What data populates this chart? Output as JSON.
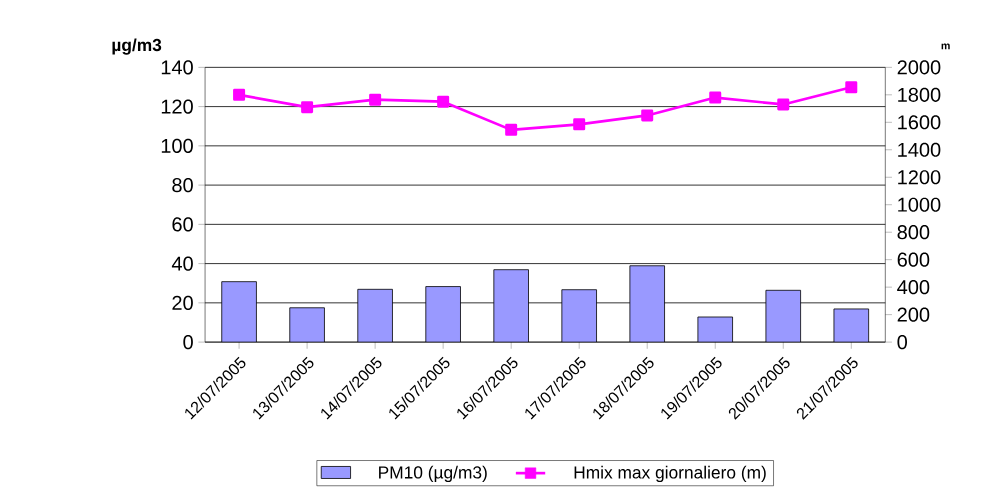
{
  "chart_data": {
    "type": "bar",
    "ylabel": "µg/m3",
    "y2label": "m",
    "categories": [
      "12/07/2005",
      "13/07/2005",
      "14/07/2005",
      "15/07/2005",
      "16/07/2005",
      "17/07/2005",
      "18/07/2005",
      "19/07/2005",
      "20/07/2005",
      "21/07/2005"
    ],
    "series": [
      {
        "name": "PM10 (µg/m3)",
        "color": "#9999ff",
        "values": [
          30.8,
          17.5,
          26.9,
          28.3,
          36.9,
          26.7,
          38.9,
          12.8,
          26.4,
          16.9
        ]
      },
      {
        "name": "Hmix max giornaliero (m)",
        "type": "line",
        "axis": "y2",
        "color": "#ff00ff",
        "values": [
          1800,
          1710,
          1765,
          1750,
          1545,
          1585,
          1650,
          1780,
          1730,
          1855
        ]
      }
    ],
    "ylim": [
      0,
      140
    ],
    "yticks": [
      0,
      20,
      40,
      60,
      80,
      100,
      120,
      140
    ],
    "y2lim": [
      0,
      2000
    ],
    "y2ticks": [
      0,
      200,
      400,
      600,
      800,
      1000,
      1200,
      1400,
      1600,
      1800,
      2000
    ],
    "grid": "y",
    "legend": "bottom",
    "marker": "square",
    "line_style": "solid"
  }
}
